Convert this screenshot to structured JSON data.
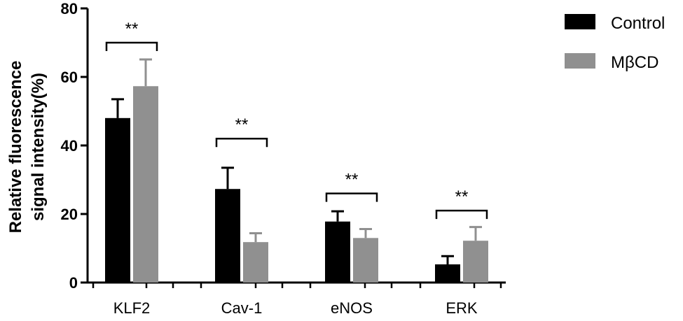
{
  "chart_data": {
    "type": "bar",
    "categories": [
      "KLF2",
      "Cav-1",
      "eNOS",
      "ERK"
    ],
    "ylabel_lines": [
      "Relative fluorescence",
      "signal intensity(%)"
    ],
    "ylim": [
      0,
      80
    ],
    "yticks": [
      0,
      20,
      40,
      60,
      80
    ],
    "legend_position": "top-right",
    "series": [
      {
        "name": "Control",
        "color": "#000000",
        "values": [
          48,
          27.3,
          17.8,
          5.3
        ],
        "errors": [
          5.5,
          6.2,
          3,
          2.4
        ]
      },
      {
        "name": "MβCD",
        "color": "#909090",
        "values": [
          57.3,
          11.8,
          13,
          12.2
        ],
        "errors": [
          7.8,
          2.6,
          2.6,
          4
        ]
      }
    ],
    "significance": [
      {
        "category": "KLF2",
        "label": "**",
        "bracket_value": 70
      },
      {
        "category": "Cav-1",
        "label": "**",
        "bracket_value": 42
      },
      {
        "category": "eNOS",
        "label": "**",
        "bracket_value": 26
      },
      {
        "category": "ERK",
        "label": "**",
        "bracket_value": 21
      }
    ]
  }
}
